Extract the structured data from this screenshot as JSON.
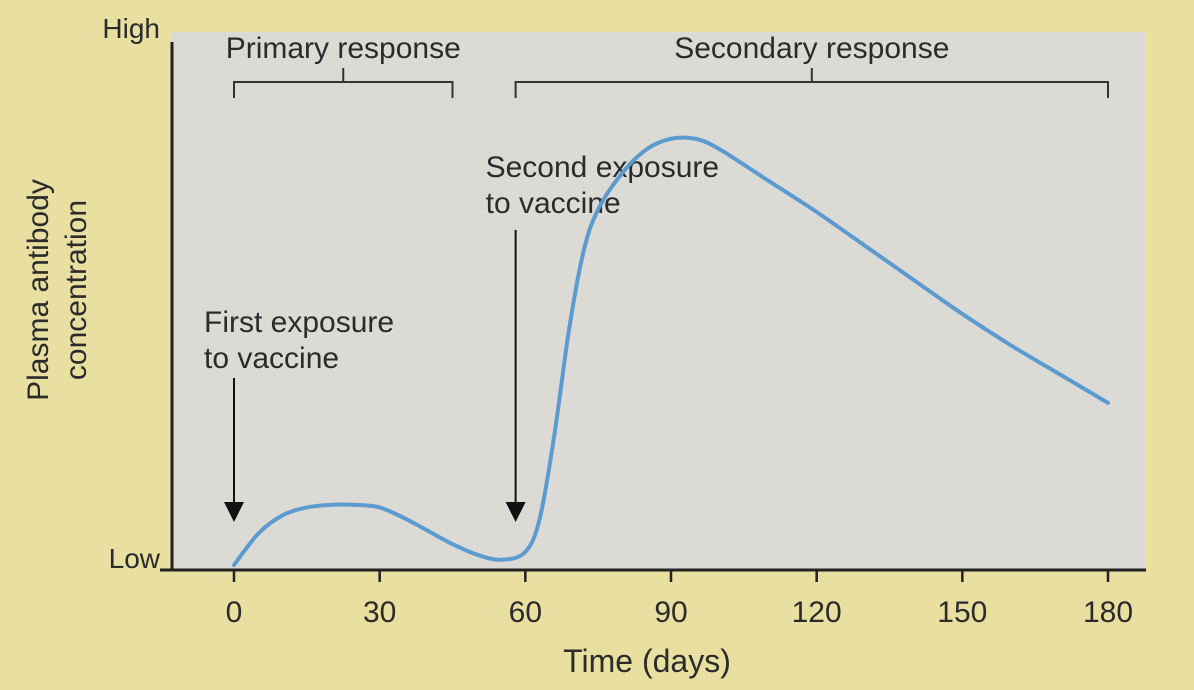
{
  "chart_data": {
    "type": "line",
    "xlabel": "Time (days)",
    "ylabel_line1": "Plasma antibody",
    "ylabel_line2": "concentration",
    "y_tick_labels": {
      "high": "High",
      "low": "Low"
    },
    "xlim": [
      0,
      180
    ],
    "ylim": [
      0,
      10
    ],
    "x_ticks": [
      0,
      30,
      60,
      90,
      120,
      150,
      180
    ],
    "series": [
      {
        "x": [
          0,
          5,
          10,
          15,
          20,
          25,
          30,
          35,
          40,
          45,
          50,
          55,
          60,
          63,
          66,
          69,
          72,
          75,
          80,
          85,
          90,
          95,
          100,
          110,
          120,
          130,
          140,
          150,
          160,
          170,
          180
        ],
        "y": [
          0,
          0.6,
          0.95,
          1.1,
          1.15,
          1.15,
          1.1,
          0.9,
          0.65,
          0.4,
          0.2,
          0.1,
          0.25,
          0.9,
          2.5,
          4.5,
          6.0,
          6.8,
          7.5,
          7.95,
          8.15,
          8.15,
          7.95,
          7.35,
          6.75,
          6.1,
          5.45,
          4.8,
          4.2,
          3.65,
          3.1
        ]
      }
    ],
    "brackets": [
      {
        "label": "Primary response",
        "x_start": 0,
        "x_end": 45
      },
      {
        "label": "Secondary response",
        "x_start": 58,
        "x_end": 180
      }
    ],
    "annotations": [
      {
        "line1": "First exposure",
        "line2": "to vaccine",
        "x": 0
      },
      {
        "line1": "Second exposure",
        "line2": "to vaccine",
        "x": 58
      }
    ],
    "grid": false,
    "colors": {
      "line": "#5b9bd0",
      "axis": "#222222",
      "plot_bg": "#dcdad4",
      "page_bg": "#e8dfa0",
      "text": "#2b2b2b"
    }
  }
}
